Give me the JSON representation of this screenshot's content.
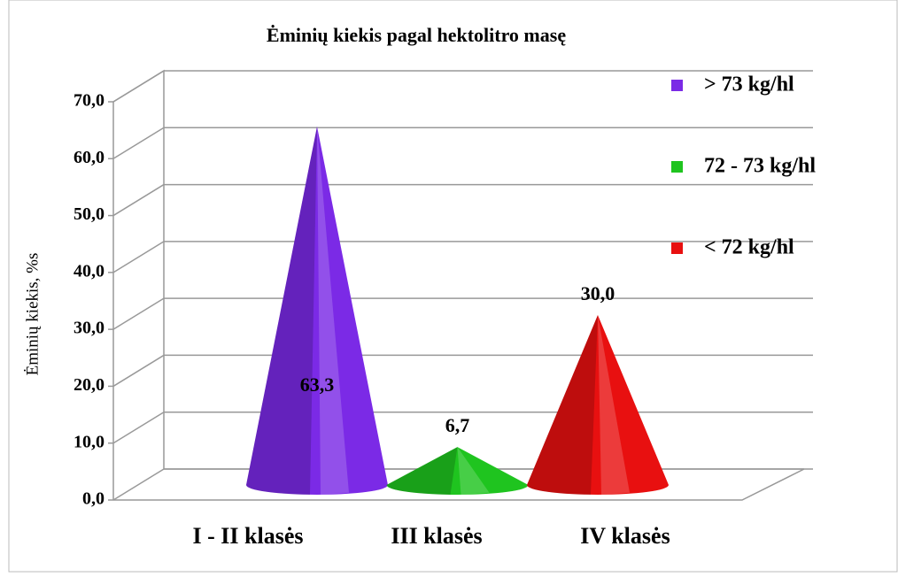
{
  "chart_data": {
    "type": "cone",
    "title": "Ėminių kiekis pagal hektolitro masę",
    "y_label": "Ėminių kiekis, %s",
    "categories": [
      "I - II klasės",
      "III klasės",
      "IV klasės"
    ],
    "series": [
      {
        "name": "> 73 kg/hl",
        "color": "#7b2ae6",
        "values": [
          63.3,
          null,
          null
        ],
        "value_labels": [
          "63,3",
          null,
          null
        ]
      },
      {
        "name": "72 - 73 kg/hl",
        "color": "#1fc41f",
        "values": [
          null,
          6.7,
          null
        ],
        "value_labels": [
          null,
          "6,7",
          null
        ]
      },
      {
        "name": "< 72 kg/hl",
        "color": "#e81010",
        "values": [
          null,
          null,
          30.0
        ],
        "value_labels": [
          null,
          null,
          "30,0"
        ]
      }
    ],
    "ylim": [
      0,
      70
    ],
    "yticks": [
      {
        "value": 0,
        "label": "0,0"
      },
      {
        "value": 10,
        "label": "10,0"
      },
      {
        "value": 20,
        "label": "20,0"
      },
      {
        "value": 30,
        "label": "30,0"
      },
      {
        "value": 40,
        "label": "40,0"
      },
      {
        "value": 50,
        "label": "50,0"
      },
      {
        "value": 60,
        "label": "60,0"
      },
      {
        "value": 70,
        "label": "70,0"
      }
    ],
    "grid": true,
    "legend": "right"
  }
}
